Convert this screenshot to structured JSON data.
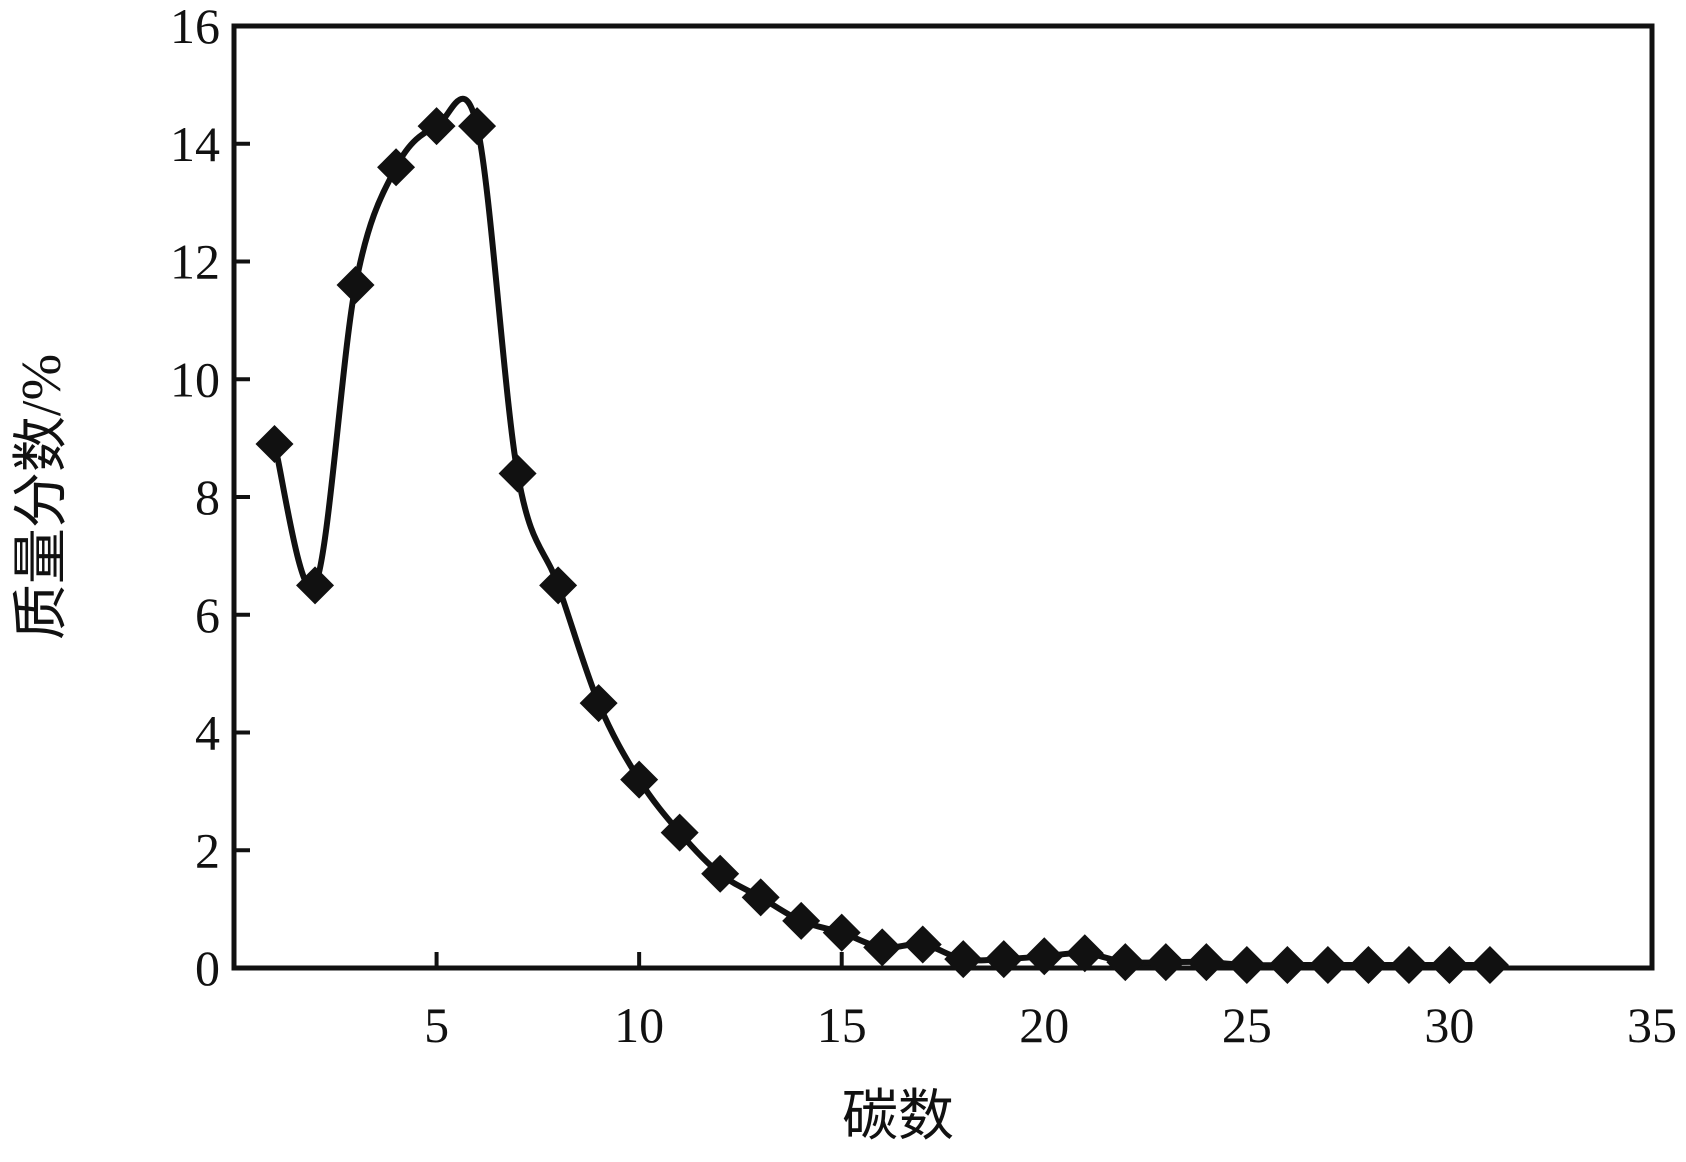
{
  "chart_data": {
    "type": "line",
    "title": "",
    "xlabel": "碳数",
    "ylabel": "质量分数/%",
    "xlim": [
      0,
      35
    ],
    "ylim": [
      0,
      16
    ],
    "x_ticks": [
      5,
      10,
      15,
      20,
      25,
      30,
      35
    ],
    "y_ticks": [
      0,
      2,
      4,
      6,
      8,
      10,
      12,
      14,
      16
    ],
    "x_tick_labels": [
      "5",
      "10",
      "15",
      "20",
      "25",
      "30",
      "35"
    ],
    "y_tick_labels": [
      "0",
      "2",
      "4",
      "6",
      "8",
      "10",
      "12",
      "14",
      "16"
    ],
    "grid": false,
    "legend": "none",
    "line_color": "#111111",
    "marker": "diamond",
    "series": [
      {
        "x": [
          1,
          2,
          3,
          4,
          5,
          6,
          7,
          8,
          9,
          10,
          11,
          12,
          13,
          14,
          15,
          16,
          17,
          18,
          19,
          20,
          21,
          22,
          23,
          24,
          25,
          26,
          27,
          28,
          29,
          30,
          31
        ],
        "values": [
          8.9,
          6.5,
          11.6,
          13.6,
          14.3,
          14.3,
          8.4,
          6.5,
          4.5,
          3.2,
          2.3,
          1.6,
          1.2,
          0.8,
          0.6,
          0.35,
          0.4,
          0.15,
          0.15,
          0.2,
          0.25,
          0.1,
          0.1,
          0.1,
          0.05,
          0.05,
          0.05,
          0.05,
          0.05,
          0.05,
          0.05
        ]
      }
    ]
  }
}
